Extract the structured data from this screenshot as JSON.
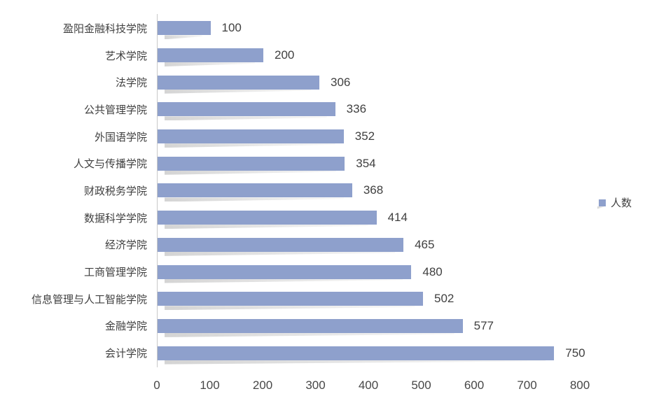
{
  "legend": {
    "label": "人数"
  },
  "colors": {
    "bar": "#8ea0cc",
    "bar_shadow": "#d4d4d4",
    "axis_line": "#c9c9c9",
    "label_text": "#3f3f3f",
    "value_text": "#404040"
  },
  "chart_data": {
    "type": "bar",
    "orientation": "horizontal",
    "title": "",
    "xlabel": "",
    "ylabel": "",
    "series_name": "人数",
    "categories": [
      "盈阳金融科技学院",
      "艺术学院",
      "法学院",
      "公共管理学院",
      "外国语学院",
      "人文与传播学院",
      "财政税务学院",
      "数据科学学院",
      "经济学院",
      "工商管理学院",
      "信息管理与人工智能学院",
      "金融学院",
      "会计学院"
    ],
    "values": [
      100,
      200,
      306,
      336,
      352,
      354,
      368,
      414,
      465,
      480,
      502,
      577,
      750
    ],
    "data_labels_shown": true,
    "xlim": [
      0,
      800
    ],
    "x_ticks": [
      0,
      100,
      200,
      300,
      400,
      500,
      600,
      700,
      800
    ],
    "grid": false,
    "legend_position": "right"
  }
}
